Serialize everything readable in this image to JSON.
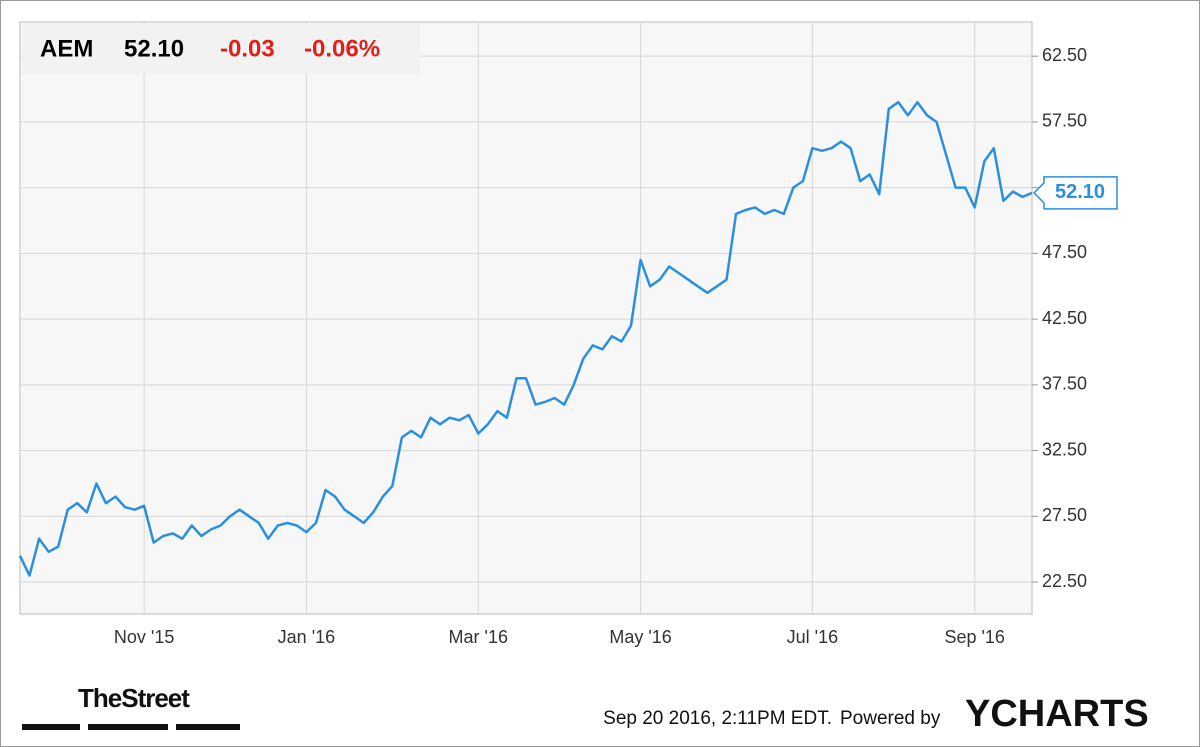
{
  "header": {
    "ticker": "AEM",
    "price": "52.10",
    "change": "-0.03",
    "change_pct": "-0.06%"
  },
  "chart_data": {
    "type": "line",
    "categories": [
      null,
      null,
      null,
      null,
      null,
      null,
      null,
      null,
      null,
      null,
      null,
      null,
      null,
      "Nov '15",
      null,
      null,
      null,
      null,
      null,
      null,
      null,
      null,
      null,
      null,
      null,
      null,
      null,
      null,
      null,
      null,
      "Jan '16",
      null,
      null,
      null,
      null,
      null,
      null,
      null,
      null,
      null,
      null,
      null,
      null,
      null,
      null,
      null,
      null,
      null,
      "Mar '16",
      null,
      null,
      null,
      null,
      null,
      null,
      null,
      null,
      null,
      null,
      null,
      null,
      null,
      null,
      null,
      null,
      "May '16",
      null,
      null,
      null,
      null,
      null,
      null,
      null,
      null,
      null,
      null,
      null,
      null,
      null,
      null,
      null,
      null,
      null,
      "Jul '16",
      null,
      null,
      null,
      null,
      null,
      null,
      null,
      null,
      null,
      null,
      null,
      null,
      null,
      null,
      null,
      null,
      "Sep '16",
      null,
      null,
      null,
      null,
      null,
      null
    ],
    "series": [
      {
        "name": "AEM",
        "color": "#2a8fe0",
        "values": [
          24.5,
          23.0,
          25.8,
          24.8,
          25.2,
          28.0,
          28.5,
          27.8,
          30.0,
          28.5,
          29.0,
          28.2,
          28.0,
          28.3,
          25.5,
          26.0,
          26.2,
          25.8,
          26.8,
          26.0,
          26.5,
          26.8,
          27.5,
          28.0,
          27.5,
          27.0,
          25.8,
          26.8,
          27.0,
          26.8,
          26.3,
          27.0,
          29.5,
          29.0,
          28.0,
          27.5,
          27.0,
          27.8,
          29.0,
          29.8,
          33.5,
          34.0,
          33.5,
          35.0,
          34.5,
          35.0,
          34.8,
          35.2,
          33.8,
          34.5,
          35.5,
          35.0,
          38.0,
          38.0,
          36.0,
          36.2,
          36.5,
          36.0,
          37.5,
          39.5,
          40.5,
          40.2,
          41.2,
          40.8,
          42.0,
          47.0,
          45.0,
          45.5,
          46.5,
          46.0,
          45.5,
          45.0,
          44.5,
          45.0,
          45.5,
          50.5,
          50.8,
          51.0,
          50.5,
          50.8,
          50.5,
          52.5,
          53.0,
          55.5,
          55.3,
          55.5,
          56.0,
          55.5,
          53.0,
          53.5,
          52.0,
          58.5,
          59.0,
          58.0,
          59.0,
          58.0,
          57.5,
          55.0,
          52.5,
          52.5,
          51.0,
          54.5,
          55.5,
          51.5,
          52.2,
          51.8,
          52.1
        ]
      }
    ],
    "ylim": [
      20.07,
      65.1
    ],
    "yticks": [
      {
        "value": 22.5,
        "label": "22.50"
      },
      {
        "value": 27.5,
        "label": "27.50"
      },
      {
        "value": 32.5,
        "label": "32.50"
      },
      {
        "value": 37.5,
        "label": "37.50"
      },
      {
        "value": 42.5,
        "label": "42.50"
      },
      {
        "value": 47.5,
        "label": "47.50"
      },
      {
        "value": 52.5,
        "label": "52.50"
      },
      {
        "value": 57.5,
        "label": "57.50"
      },
      {
        "value": 62.5,
        "label": "62.50"
      }
    ],
    "grid": true
  },
  "footer": {
    "timestamp": "Sep 20 2016, 2:11PM EDT.",
    "powered": "Powered by",
    "brand": "YCHARTS",
    "source": "TheStreet"
  }
}
